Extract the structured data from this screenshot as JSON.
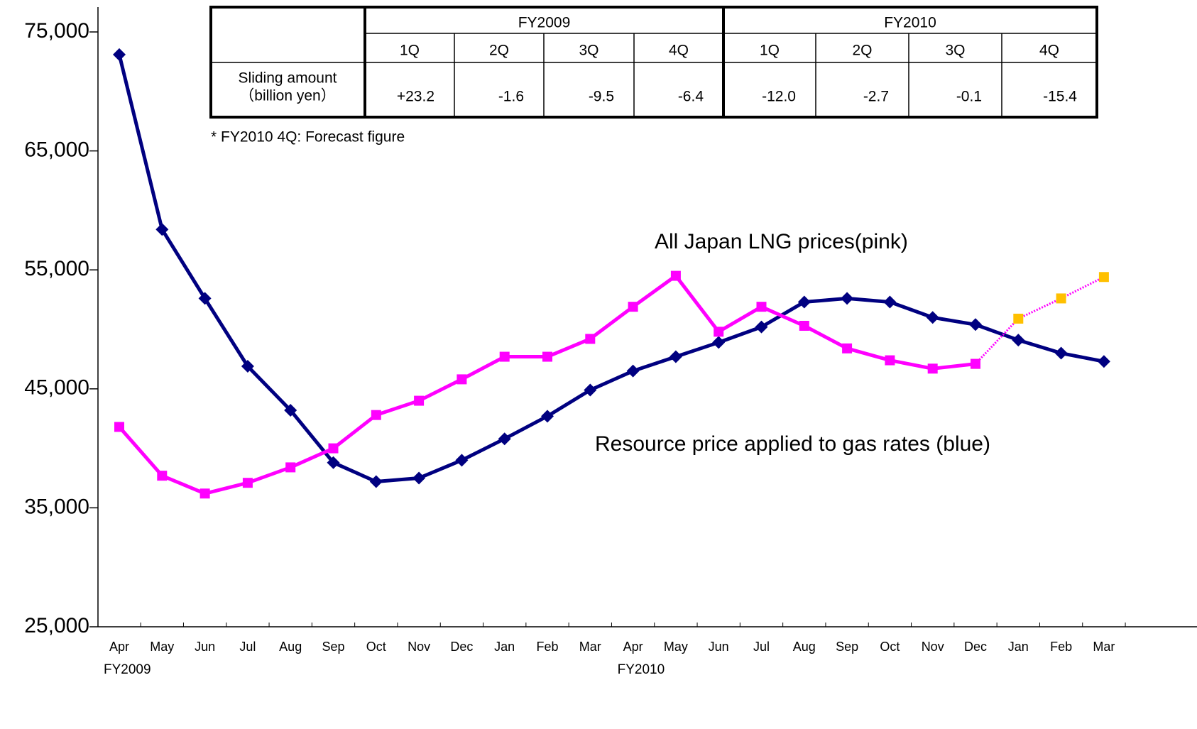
{
  "chart_data": {
    "type": "line",
    "categories": [
      "Apr",
      "May",
      "Jun",
      "Jul",
      "Aug",
      "Sep",
      "Oct",
      "Nov",
      "Dec",
      "Jan",
      "Feb",
      "Mar",
      "Apr",
      "May",
      "Jun",
      "Jul",
      "Aug",
      "Sep",
      "Oct",
      "Nov",
      "Dec",
      "Jan",
      "Feb",
      "Mar"
    ],
    "year_labels": [
      "FY2009",
      null,
      null,
      null,
      null,
      null,
      null,
      null,
      null,
      null,
      null,
      null,
      "FY2010",
      null,
      null,
      null,
      null,
      null,
      null,
      null,
      null,
      null,
      null,
      null
    ],
    "ylim": [
      25000,
      75000
    ],
    "yticks": [
      {
        "value": 25000,
        "label": "25,000"
      },
      {
        "value": 35000,
        "label": "35,000"
      },
      {
        "value": 45000,
        "label": "45,000"
      },
      {
        "value": 55000,
        "label": "55,000"
      },
      {
        "value": 65000,
        "label": "65,000"
      },
      {
        "value": 75000,
        "label": "75,000"
      }
    ],
    "series": [
      {
        "name": "Resource price applied to gas rates (blue)",
        "color": "#000080",
        "marker": "diamond",
        "values": [
          73100,
          58400,
          52600,
          46900,
          43200,
          38800,
          37200,
          37500,
          39000,
          40800,
          42700,
          44900,
          46500,
          47700,
          48900,
          50200,
          52300,
          52600,
          52300,
          51000,
          50400,
          49100,
          48000,
          47300
        ]
      },
      {
        "color": "#ffc000",
        "line_color": "#ff00ff",
        "marker": "square",
        "dotted": true,
        "values": [
          null,
          null,
          null,
          null,
          null,
          null,
          null,
          null,
          null,
          null,
          null,
          null,
          null,
          null,
          null,
          null,
          null,
          null,
          null,
          null,
          47100,
          50900,
          52600,
          54400
        ]
      },
      {
        "name": "All Japan LNG prices(pink)",
        "color": "#ff00ff",
        "marker": "square",
        "values": [
          41800,
          37700,
          36200,
          37100,
          38400,
          40000,
          42800,
          44000,
          45800,
          47700,
          47700,
          49200,
          51900,
          54500,
          49800,
          51900,
          50300,
          48400,
          47400,
          46700,
          47100,
          null,
          null,
          null
        ]
      }
    ],
    "note": "* FY2010 4Q: Forecast figure",
    "table": {
      "years": [
        "FY2009",
        "FY2010"
      ],
      "quarters": [
        "1Q",
        "2Q",
        "3Q",
        "4Q",
        "1Q",
        "2Q",
        "3Q",
        "4Q"
      ],
      "row_label": [
        "Sliding amount",
        "（billion yen）"
      ],
      "values": [
        "+23.2",
        "-1.6",
        "-9.5",
        "-6.4",
        "-12.0",
        "-2.7",
        "-0.1",
        "-15.4"
      ]
    }
  }
}
